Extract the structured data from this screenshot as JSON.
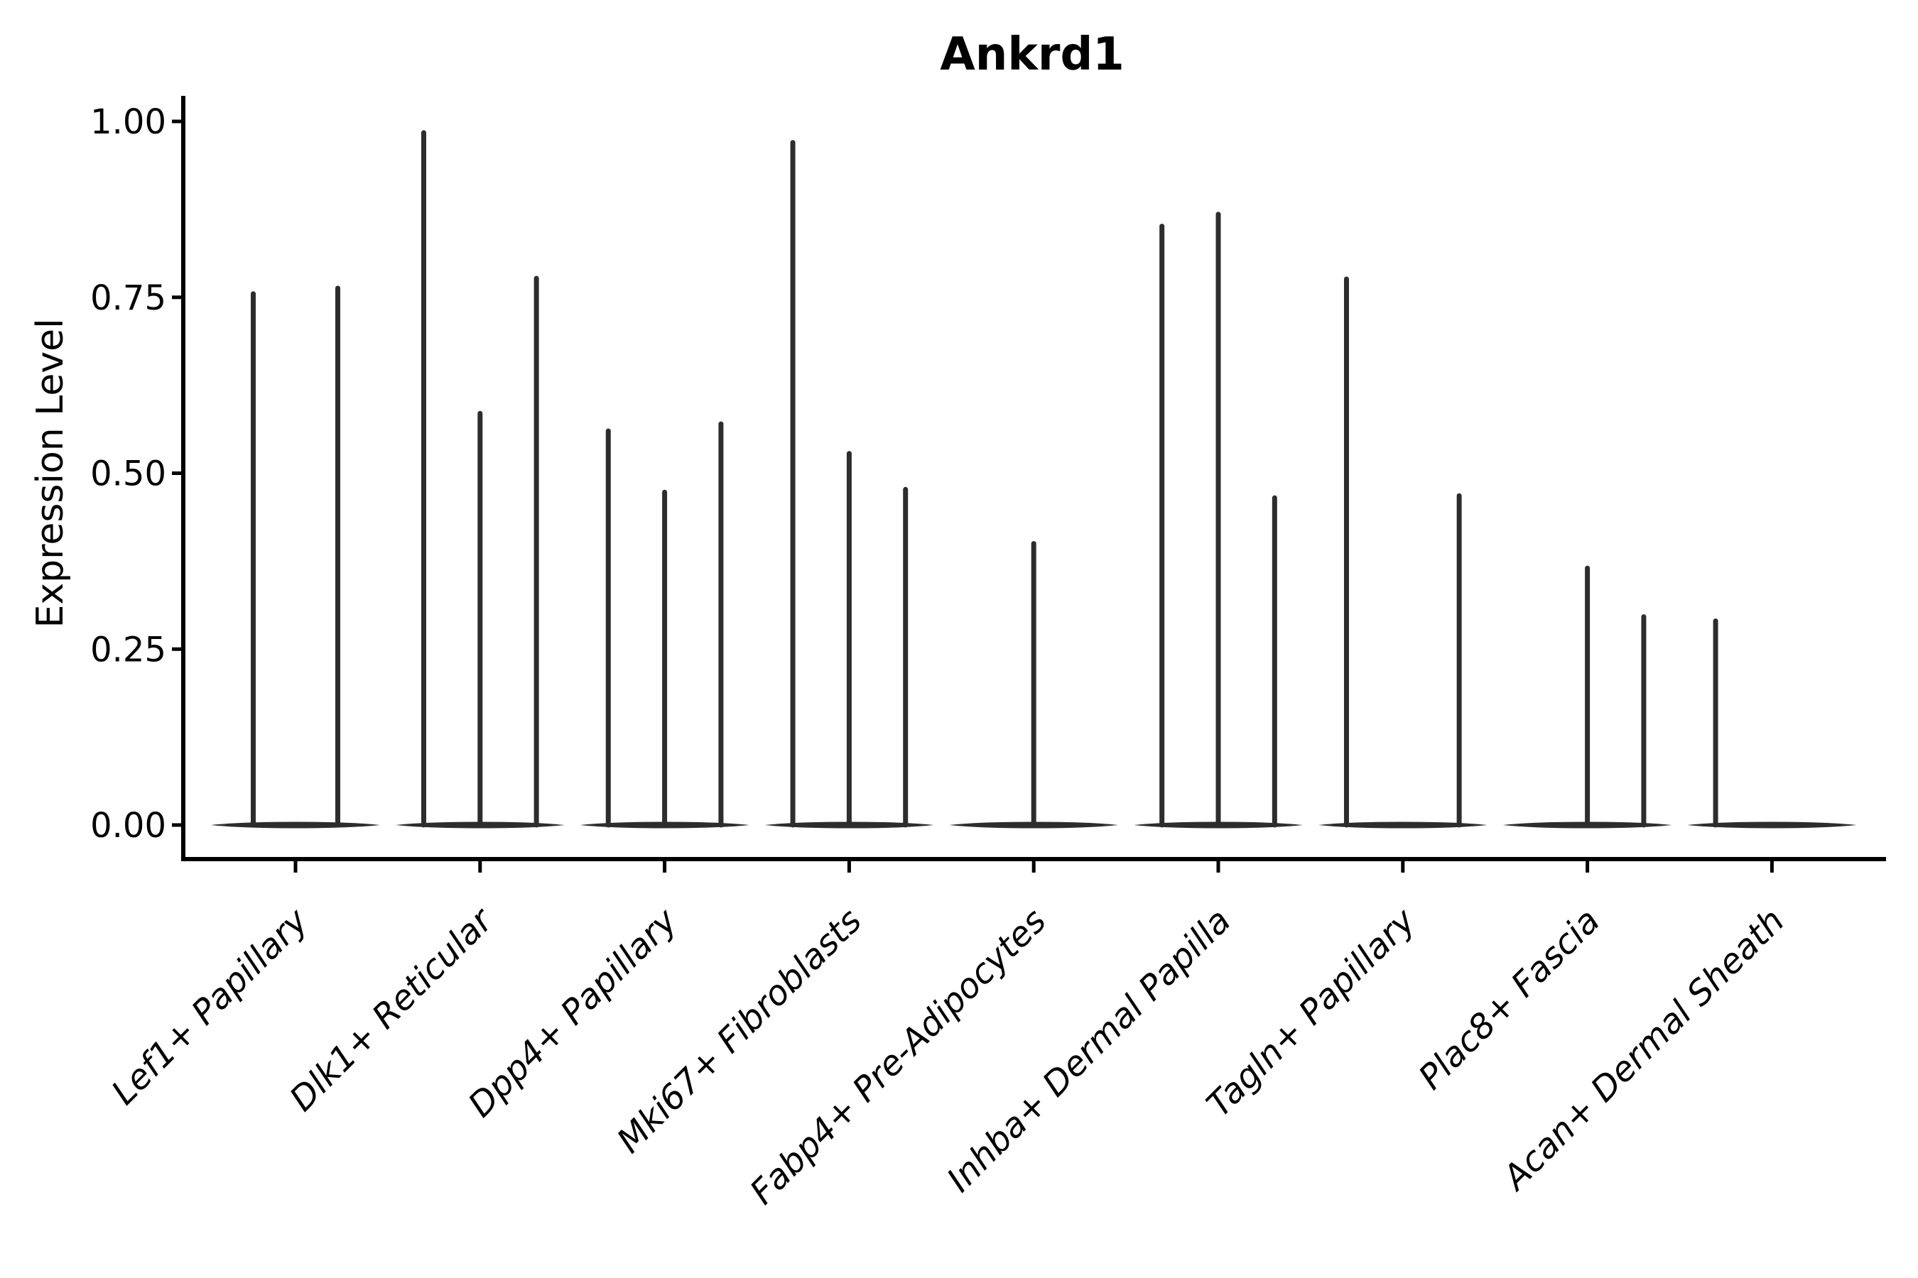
{
  "figure": {
    "background_color": "#ffffff"
  },
  "chart_data": {
    "type": "violin",
    "title": "Ankrd1",
    "xlabel": "",
    "ylabel": "Expression Level",
    "ylim": [
      0,
      1.0
    ],
    "grid": false,
    "legend_position": "none",
    "ytick_values": [
      0.0,
      0.25,
      0.5,
      0.75,
      1.0
    ],
    "ytick_labels": [
      "0.00",
      "0.25",
      "0.50",
      "0.75",
      "1.00"
    ],
    "violin_color": "#2d2d2d",
    "axis_color": "#000000",
    "note": "Needle-thin violins: each category shows a flat zero-expression base with narrow density spikes; spike pos = fraction across category slot, value = spike top on Expression Level axis",
    "categories": [
      {
        "label": "Lef1+ Papillary",
        "spikes": [
          {
            "pos": 0.25,
            "value": 0.755
          },
          {
            "pos": 0.75,
            "value": 0.763
          }
        ]
      },
      {
        "label": "Dlk1+ Reticular",
        "spikes": [
          {
            "pos": 0.1667,
            "value": 0.984
          },
          {
            "pos": 0.5,
            "value": 0.585
          },
          {
            "pos": 0.8333,
            "value": 0.777
          }
        ]
      },
      {
        "label": "Dpp4+ Papillary",
        "spikes": [
          {
            "pos": 0.1667,
            "value": 0.56
          },
          {
            "pos": 0.5,
            "value": 0.473
          },
          {
            "pos": 0.8333,
            "value": 0.57
          }
        ]
      },
      {
        "label": "Mki67+ Fibroblasts",
        "spikes": [
          {
            "pos": 0.1667,
            "value": 0.97
          },
          {
            "pos": 0.5,
            "value": 0.528
          },
          {
            "pos": 0.8333,
            "value": 0.477
          }
        ]
      },
      {
        "label": "Fabp4+ Pre-Adipocytes",
        "spikes": [
          {
            "pos": 0.5,
            "value": 0.4
          }
        ]
      },
      {
        "label": "Inhba+ Dermal Papilla",
        "spikes": [
          {
            "pos": 0.1667,
            "value": 0.851
          },
          {
            "pos": 0.5,
            "value": 0.868
          },
          {
            "pos": 0.8333,
            "value": 0.465
          }
        ]
      },
      {
        "label": "Tagln+ Papillary",
        "spikes": [
          {
            "pos": 0.1667,
            "value": 0.776
          },
          {
            "pos": 0.8333,
            "value": 0.468
          }
        ]
      },
      {
        "label": "Plac8+ Fascia",
        "spikes": [
          {
            "pos": 0.5,
            "value": 0.365
          },
          {
            "pos": 0.8333,
            "value": 0.296
          }
        ]
      },
      {
        "label": "Acan+ Dermal Sheath",
        "spikes": [
          {
            "pos": 0.1667,
            "value": 0.29
          }
        ]
      }
    ]
  }
}
